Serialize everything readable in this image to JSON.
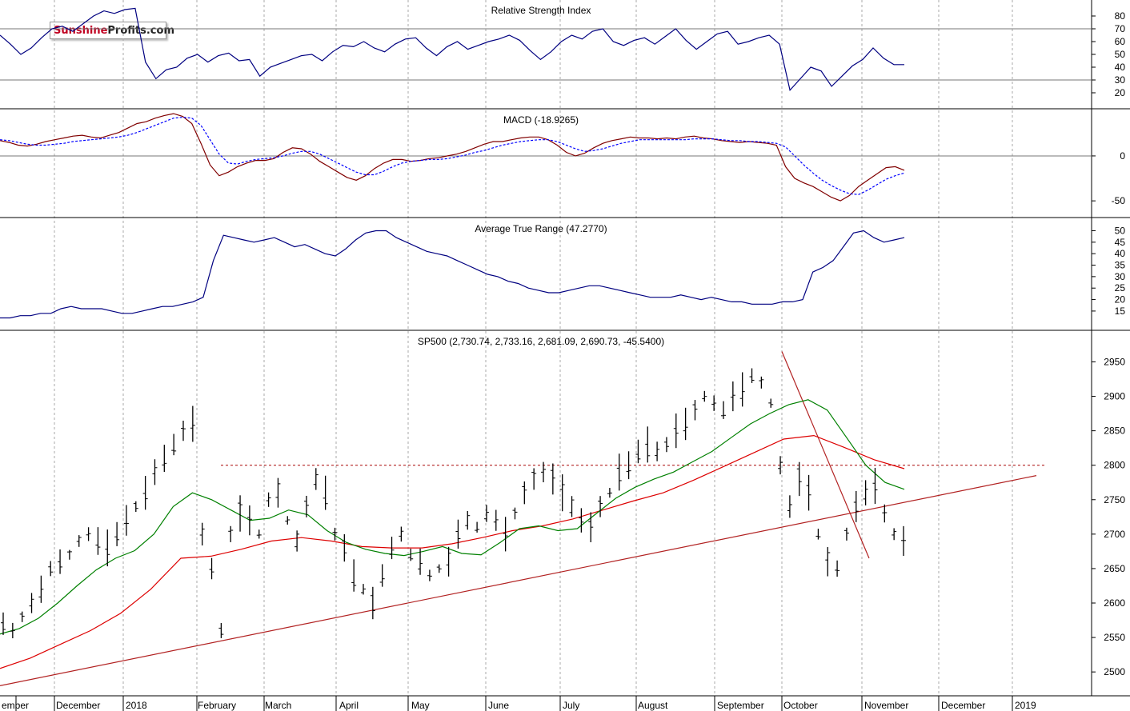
{
  "logo": {
    "part1": "Sunshine",
    "part2": "Profits.com"
  },
  "colors": {
    "price_bars": "#000000",
    "sma_fast": "#008000",
    "sma_slow": "#dd0000",
    "rsi_line": "#000080",
    "macd_line": "#800000",
    "macd_signal": "#0000ff",
    "atr_line": "#000080",
    "trend_line": "#b22222",
    "resistance": "#b22222",
    "gridline": "#aaaaaa"
  },
  "x_axis": {
    "months": [
      "ember",
      "December",
      "2018",
      "February",
      "March",
      "April",
      "May",
      "June",
      "July",
      "August",
      "September",
      "October",
      "November",
      "December",
      "2019"
    ]
  },
  "chart_data": [
    {
      "type": "line",
      "title": "Relative Strength Index",
      "ylim": [
        10,
        90
      ],
      "yticks": [
        80,
        70,
        60,
        50,
        40,
        30,
        20
      ],
      "reference_lines": [
        70,
        30
      ],
      "series": [
        {
          "values": [
            65,
            58,
            50,
            55,
            63,
            70,
            72,
            68,
            74,
            80,
            84,
            82,
            85,
            86,
            44,
            31,
            38,
            40,
            47,
            50,
            44,
            49,
            51,
            45,
            46,
            33,
            40,
            43,
            46,
            49,
            50,
            45,
            52,
            57,
            56,
            60,
            55,
            52,
            58,
            62,
            63,
            55,
            49,
            56,
            60,
            54,
            57,
            60,
            62,
            65,
            61,
            53,
            46,
            52,
            60,
            65,
            62,
            68,
            70,
            60,
            57,
            61,
            63,
            58,
            64,
            70,
            61,
            54,
            60,
            66,
            68,
            58,
            60,
            63,
            65,
            58,
            22,
            31,
            40,
            37,
            25,
            33,
            41,
            46,
            55,
            47,
            42,
            42
          ]
        }
      ]
    },
    {
      "type": "line",
      "title": "MACD (-18.9265)",
      "ylim": [
        -65,
        48
      ],
      "yticks": [
        0,
        -50
      ],
      "reference_lines": [
        0
      ],
      "series": [
        {
          "values": [
            17,
            15,
            12,
            11,
            13,
            16,
            18,
            20,
            22,
            23,
            21,
            20,
            23,
            26,
            31,
            36,
            38,
            42,
            45,
            47,
            44,
            36,
            14,
            -10,
            -22,
            -18,
            -12,
            -8,
            -5,
            -5,
            -3,
            4,
            9,
            8,
            2,
            -6,
            -12,
            -18,
            -24,
            -27,
            -22,
            -14,
            -8,
            -4,
            -4,
            -6,
            -5,
            -3,
            -2,
            0,
            2,
            5,
            9,
            13,
            16,
            16,
            18,
            20,
            21,
            21,
            18,
            12,
            4,
            0,
            3,
            9,
            14,
            17,
            19,
            21,
            20,
            20,
            19,
            20,
            19,
            21,
            22,
            20,
            19,
            17,
            16,
            15,
            16,
            15,
            14,
            12,
            -12,
            -25,
            -30,
            -34,
            -40,
            -46,
            -50,
            -44,
            -34,
            -27,
            -20,
            -13,
            -12,
            -16
          ]
        },
        {
          "values": [
            18,
            17,
            15,
            13,
            12,
            12,
            13,
            14,
            16,
            17,
            18,
            19,
            20,
            21,
            23,
            26,
            30,
            34,
            38,
            42,
            43,
            42,
            34,
            18,
            2,
            -8,
            -9,
            -6,
            -4,
            -3,
            -2,
            0,
            3,
            5,
            5,
            2,
            -3,
            -8,
            -13,
            -18,
            -21,
            -21,
            -17,
            -12,
            -8,
            -6,
            -5,
            -4,
            -4,
            -3,
            -1,
            1,
            4,
            6,
            9,
            12,
            14,
            16,
            17,
            18,
            18,
            16,
            12,
            8,
            5,
            6,
            8,
            11,
            14,
            16,
            18,
            18,
            18,
            18,
            18,
            18,
            19,
            19,
            19,
            18,
            17,
            17,
            16,
            16,
            15,
            14,
            10,
            0,
            -10,
            -19,
            -27,
            -33,
            -38,
            -42,
            -43,
            -38,
            -32,
            -26,
            -22,
            -19
          ]
        }
      ]
    },
    {
      "type": "line",
      "title": "Average True Range (47.2770)",
      "ylim": [
        8,
        54
      ],
      "yticks": [
        50,
        45,
        40,
        35,
        30,
        25,
        20,
        15
      ],
      "series": [
        {
          "values": [
            12,
            12,
            13,
            13,
            14,
            14,
            16,
            17,
            16,
            16,
            16,
            15,
            14,
            14,
            15,
            16,
            17,
            17,
            18,
            19,
            21,
            37,
            48,
            47,
            46,
            45,
            46,
            47,
            45,
            43,
            44,
            42,
            40,
            39,
            42,
            46,
            49,
            50,
            50,
            47,
            45,
            43,
            41,
            40,
            39,
            37,
            35,
            33,
            31,
            30,
            28,
            27,
            25,
            24,
            23,
            23,
            24,
            25,
            26,
            26,
            25,
            24,
            23,
            22,
            21,
            21,
            21,
            22,
            21,
            20,
            21,
            20,
            19,
            19,
            18,
            18,
            18,
            19,
            19,
            20,
            32,
            34,
            37,
            43,
            49,
            50,
            47,
            45,
            46,
            47
          ]
        }
      ]
    },
    {
      "type": "ohlc",
      "title": "SP500 (2,730.74, 2,733.16, 2,681.09, 2,690.73, -45.5400)",
      "ylim": [
        2470,
        2990
      ],
      "yticks": [
        2950,
        2900,
        2850,
        2800,
        2750,
        2700,
        2650,
        2600,
        2550,
        2500
      ],
      "overlays": {
        "sma_fast_values": [
          2555,
          2563,
          2578,
          2600,
          2625,
          2648,
          2665,
          2676,
          2700,
          2740,
          2760,
          2750,
          2735,
          2720,
          2723,
          2735,
          2728,
          2705,
          2688,
          2678,
          2672,
          2669,
          2675,
          2682,
          2672,
          2670,
          2688,
          2708,
          2712,
          2705,
          2708,
          2730,
          2752,
          2768,
          2780,
          2790,
          2805,
          2820,
          2840,
          2860,
          2875,
          2888,
          2895,
          2880,
          2840,
          2800,
          2775,
          2765
        ],
        "sma_slow_values": [
          2505,
          2520,
          2540,
          2560,
          2585,
          2620,
          2665,
          2668,
          2678,
          2690,
          2695,
          2690,
          2682,
          2680,
          2680,
          2686,
          2695,
          2705,
          2712,
          2722,
          2735,
          2748,
          2760,
          2778,
          2798,
          2818,
          2838,
          2843,
          2826,
          2808,
          2795
        ],
        "resistance": 2800,
        "trend_lines": [
          {
            "from": [
              2480
            ],
            "to": [
              2785
            ]
          },
          {
            "from": [
              2965
            ],
            "to": [
              2665
            ]
          }
        ]
      }
    }
  ]
}
